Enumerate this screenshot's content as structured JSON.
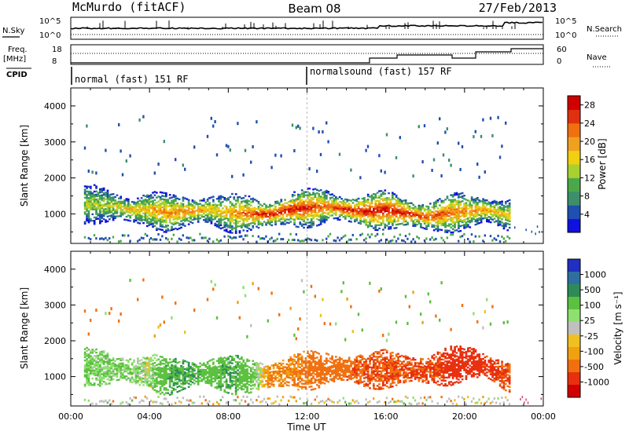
{
  "header": {
    "station": "McMurdo (fitACF)",
    "beam": "Beam 08",
    "date": "27/Feb/2013"
  },
  "side_labels": {
    "nsky": "N.Sky",
    "nsearch": "N.Search",
    "freq": "Freq.",
    "freq_unit": "[MHz]",
    "nave": "Nave",
    "cpid": "CPID"
  },
  "noise_axis": {
    "left_top": "10^5",
    "left_bottom": "10^0",
    "right_top": "10^5",
    "right_bottom": "10^0"
  },
  "freq_axis": {
    "top": "18",
    "bottom": "8"
  },
  "nave_axis": {
    "top": "60",
    "bottom": "0"
  },
  "cpid_segments": [
    {
      "label": "normal (fast) 151 RF",
      "start_hour": 0
    },
    {
      "label": "normalsound (fast) 157 RF",
      "start_hour": 12
    }
  ],
  "colors": {
    "power_scale": [
      "#1010e0",
      "#1f4fb0",
      "#3d8f6a",
      "#4aa84a",
      "#a8d030",
      "#f0d010",
      "#f0a020",
      "#f07010",
      "#e03010",
      "#d00000"
    ],
    "velocity_scale": [
      "#2030c0",
      "#2f6fa0",
      "#2e8b57",
      "#5cc040",
      "#8ee070",
      "#c0c0c0",
      "#f0c020",
      "#f0a010",
      "#f07010",
      "#e83010",
      "#d00000"
    ]
  },
  "chart_data": [
    {
      "type": "heatmap",
      "title": "",
      "xlabel": "",
      "ylabel": "Slant Range [km]",
      "xlim": [
        0,
        24
      ],
      "ylim": [
        180,
        4500
      ],
      "yticks": [
        1000,
        2000,
        3000,
        4000
      ],
      "colorbar_label": "Power [dB]",
      "colorbar_ticks": [
        "28",
        "24",
        "20",
        "16",
        "12",
        "8",
        "4"
      ],
      "colorbar_range": [
        0,
        30
      ],
      "echo_band": {
        "hours": [
          1,
          2,
          3,
          4,
          5,
          6,
          7,
          8,
          9,
          10,
          11,
          12,
          13,
          14,
          15,
          16,
          17,
          18,
          19,
          20,
          21,
          22
        ],
        "center_km": [
          1250,
          1200,
          1100,
          1100,
          1000,
          1050,
          1100,
          1000,
          1000,
          950,
          1100,
          1150,
          1200,
          1100,
          1050,
          1100,
          1000,
          900,
          1000,
          1050,
          1100,
          950
        ],
        "peak_db": [
          14,
          16,
          18,
          20,
          22,
          22,
          18,
          20,
          24,
          28,
          28,
          26,
          24,
          28,
          28,
          28,
          28,
          26,
          24,
          22,
          20,
          18
        ]
      }
    },
    {
      "type": "heatmap",
      "title": "",
      "xlabel": "Time UT",
      "ylabel": "Slant Range [km]",
      "xlim": [
        0,
        24
      ],
      "ylim": [
        180,
        4500
      ],
      "yticks": [
        1000,
        2000,
        3000,
        4000
      ],
      "xticks": [
        "00:00",
        "04:00",
        "08:00",
        "12:00",
        "16:00",
        "20:00",
        "00:00"
      ],
      "colorbar_label": "Velocity [m s⁻¹]",
      "colorbar_ticks": [
        "1000",
        "500",
        "100",
        "25",
        "-25",
        "-100",
        "-500",
        "-1000"
      ],
      "echo_band": {
        "hours": [
          1,
          2,
          3,
          4,
          5,
          6,
          7,
          8,
          9,
          10,
          11,
          12,
          13,
          14,
          15,
          16,
          17,
          18,
          19,
          20,
          21,
          22
        ],
        "center_km": [
          1250,
          1200,
          1150,
          1100,
          1000,
          1050,
          1100,
          1050,
          1000,
          1000,
          1100,
          1150,
          1200,
          1200,
          1150,
          1200,
          1200,
          1150,
          1250,
          1400,
          1300,
          1000
        ],
        "velocity_ms": [
          100,
          100,
          100,
          60,
          300,
          300,
          200,
          300,
          200,
          -100,
          -100,
          -150,
          -200,
          -250,
          -300,
          -300,
          -300,
          -300,
          -350,
          -400,
          -350,
          -300
        ]
      }
    }
  ]
}
